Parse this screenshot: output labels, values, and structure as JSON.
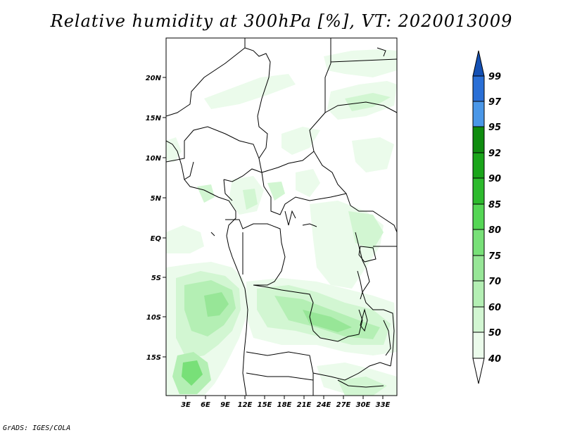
{
  "title": "Relative humidity at 300hPa [%], VT: 2020013009",
  "footer": "GrADS: IGES/COLA",
  "lat_labels": [
    "20N",
    "15N",
    "10N",
    "5N",
    "EQ",
    "5S",
    "10S",
    "15S"
  ],
  "lon_labels": [
    "3E",
    "6E",
    "9E",
    "12E",
    "15E",
    "18E",
    "21E",
    "24E",
    "27E",
    "30E",
    "33E"
  ],
  "colorbar": {
    "levels": [
      "99",
      "97",
      "95",
      "92",
      "90",
      "85",
      "80",
      "75",
      "70",
      "60",
      "50",
      "40"
    ],
    "colors": {
      "above_99": "#1450b4",
      "97_99": "#2a6fd6",
      "95_97": "#4a97e8",
      "92_95": "#0f8c0f",
      "90_92": "#1aa51a",
      "85_90": "#2dba2d",
      "80_85": "#55d655",
      "75_80": "#78e078",
      "70_75": "#97e697",
      "60_70": "#b4efb4",
      "50_60": "#d2f6d2",
      "40_50": "#ebfbeb",
      "below_40": "#ffffff"
    }
  }
}
